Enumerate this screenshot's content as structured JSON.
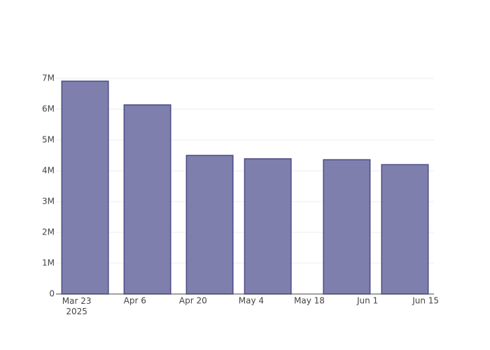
{
  "chart_data": {
    "type": "bar",
    "x": [
      "2025-03-25",
      "2025-04-09",
      "2025-04-24",
      "2025-05-08",
      "2025-05-27",
      "2025-06-10"
    ],
    "values": [
      6910000,
      6140000,
      4500000,
      4390000,
      4360000,
      4200000
    ],
    "color": "#7f7fae",
    "line_color": "#4b4a86",
    "xlim": [
      "2025-03-18",
      "2025-06-17"
    ],
    "xticks": [
      {
        "value": "2025-03-23",
        "label": "Mar 23\n2025"
      },
      {
        "value": "2025-04-06",
        "label": "Apr 6"
      },
      {
        "value": "2025-04-20",
        "label": "Apr 20"
      },
      {
        "value": "2025-05-04",
        "label": "May 4"
      },
      {
        "value": "2025-05-18",
        "label": "May 18"
      },
      {
        "value": "2025-06-01",
        "label": "Jun 1"
      },
      {
        "value": "2025-06-15",
        "label": "Jun 15"
      }
    ],
    "ylim": [
      0,
      7000000
    ],
    "yticks": [
      0,
      {
        "value": 1000000,
        "label": "1M"
      },
      {
        "value": 2000000,
        "label": "2M"
      },
      {
        "value": 3000000,
        "label": "3M"
      },
      {
        "value": 4000000,
        "label": "4M"
      },
      {
        "value": 5000000,
        "label": "5M"
      },
      {
        "value": 6000000,
        "label": "6M"
      },
      {
        "value": 7000000,
        "label": "7M"
      }
    ],
    "grid": true
  }
}
